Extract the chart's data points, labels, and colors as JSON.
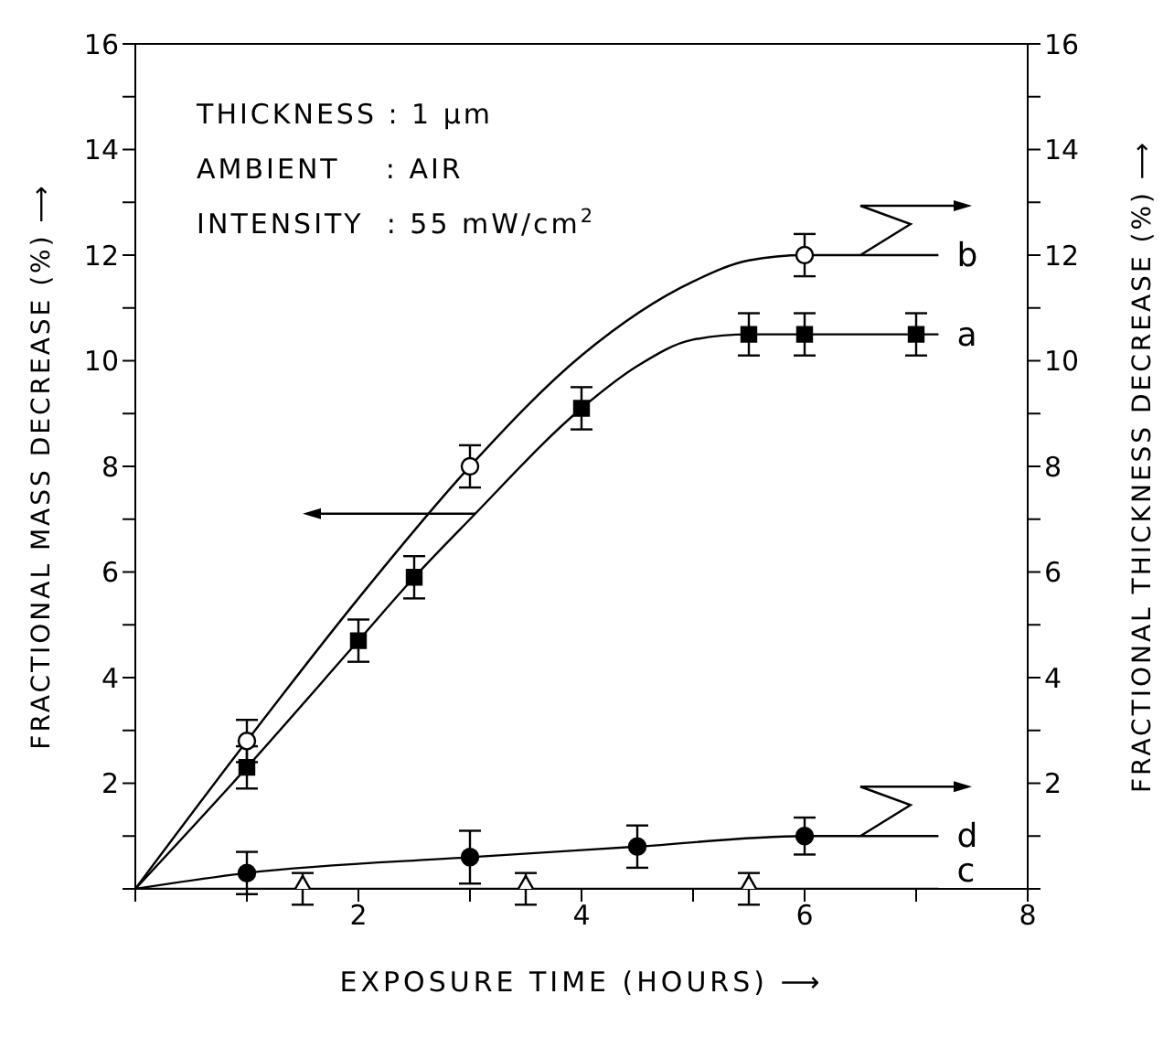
{
  "chart_data": {
    "type": "scatter",
    "xlabel": "EXPOSURE TIME (HOURS) ⟶",
    "ylabel": "FRACTIONAL MASS DECREASE (%) ⟶",
    "y2label": "FRACTIONAL THICKNESS DECREASE (%) ⟶",
    "annotations": [
      "THICKNESS : 1 μm",
      "AMBIENT    : AIR",
      "INTENSITY  : 55 mW/cm$^{2}$"
    ],
    "xlim": [
      0,
      8
    ],
    "xticks": [
      {
        "value": 0,
        "label": null
      },
      {
        "value": 1,
        "label": null
      },
      2,
      {
        "value": 3,
        "label": null
      },
      4,
      {
        "value": 5,
        "label": null
      },
      6,
      {
        "value": 7,
        "label": null
      },
      8
    ],
    "ylim": [
      0,
      16
    ],
    "yticks": [
      {
        "value": 0,
        "label": null
      },
      {
        "value": 1,
        "label": null
      },
      2,
      {
        "value": 3,
        "label": null
      },
      4,
      {
        "value": 5,
        "label": null
      },
      6,
      {
        "value": 7,
        "label": null
      },
      8,
      {
        "value": 9,
        "label": null
      },
      10,
      {
        "value": 11,
        "label": null
      },
      12,
      {
        "value": 13,
        "label": null
      },
      14,
      {
        "value": 15,
        "label": null
      },
      16
    ],
    "y2lim": [
      0,
      16
    ],
    "y2ticks": [
      {
        "value": 0,
        "label": null
      },
      {
        "value": 1,
        "label": null
      },
      2,
      {
        "value": 3,
        "label": null
      },
      4,
      {
        "value": 5,
        "label": null
      },
      6,
      {
        "value": 7,
        "label": null
      },
      8,
      {
        "value": 9,
        "label": null
      },
      10,
      {
        "value": 11,
        "label": null
      },
      12,
      {
        "value": 13,
        "label": null
      },
      14,
      {
        "value": 15,
        "label": null
      },
      16
    ],
    "grid": false,
    "legend": "right",
    "series": [
      {
        "color": "#000000",
        "marker": "square",
        "x": [
          1,
          2,
          2.5,
          4,
          5.5,
          6,
          7
        ],
        "values": [
          2.3,
          4.7,
          5.9,
          9.1,
          10.5,
          10.5,
          10.5
        ],
        "errors": [
          0.4,
          0.4,
          0.4,
          0.4,
          0.4,
          0.4,
          0.4
        ]
      },
      {
        "color": "#ffffff",
        "marker": "circle",
        "axis": "y2",
        "x": [
          1,
          3,
          6
        ],
        "values": [
          2.8,
          8.0,
          12.0
        ],
        "errors": [
          0.4,
          0.4,
          0.4
        ]
      },
      {
        "color": "#ffffff",
        "marker": "triangle",
        "x": [
          1.5,
          3.5,
          5.5
        ],
        "values": [
          0,
          0,
          0
        ],
        "errors": [
          0.3,
          0.3,
          0.3
        ]
      },
      {
        "color": "#000000",
        "marker": "circle",
        "axis": "y2",
        "x": [
          1,
          3,
          4.5,
          6
        ],
        "values": [
          0.3,
          0.6,
          0.8,
          1.0
        ],
        "errors": [
          0.4,
          0.5,
          0.4,
          0.35
        ]
      },
      {
        "type": "line",
        "name": "a",
        "color": "#000000",
        "marker": "none",
        "x": [
          0,
          1,
          2,
          2.5,
          3,
          4,
          4.5,
          5,
          5.5,
          6,
          7.2
        ],
        "values": [
          0,
          2.3,
          4.7,
          5.9,
          7.0,
          9.1,
          9.9,
          10.4,
          10.5,
          10.5,
          10.5
        ]
      },
      {
        "type": "line",
        "name": "b",
        "color": "#000000",
        "marker": "none",
        "axis": "y2",
        "x": [
          0,
          1,
          2,
          3,
          4,
          5,
          5.5,
          6,
          7.2
        ],
        "values": [
          0,
          2.8,
          5.5,
          8.0,
          10.1,
          11.5,
          11.9,
          12.0,
          12.0
        ]
      },
      {
        "type": "line",
        "name": "c",
        "color": "#000000",
        "marker": "none",
        "x": [
          0,
          7.2
        ],
        "values": [
          0,
          0
        ]
      },
      {
        "type": "line",
        "name": "d",
        "color": "#000000",
        "marker": "none",
        "axis": "y2",
        "x": [
          0,
          1,
          3,
          4.5,
          6,
          7.2
        ],
        "values": [
          0,
          0.3,
          0.6,
          0.8,
          1.0,
          1.0
        ]
      }
    ]
  }
}
